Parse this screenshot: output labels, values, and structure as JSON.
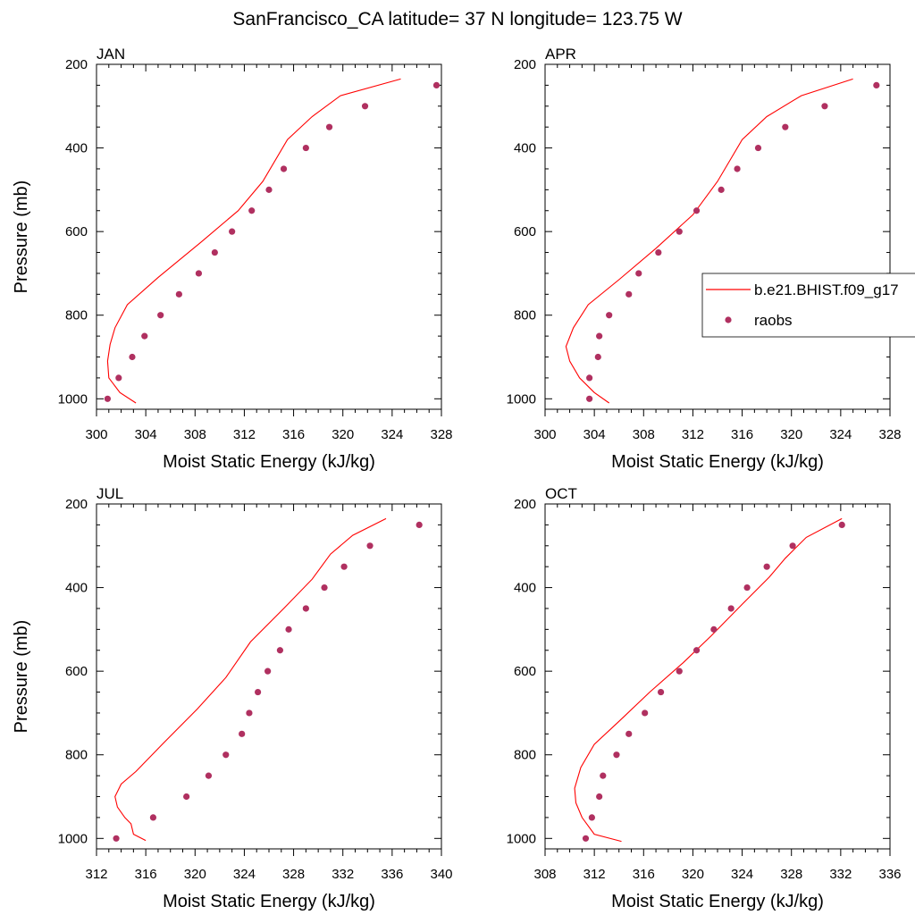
{
  "page": {
    "title": "SanFrancisco_CA  latitude= 37 N longitude= 123.75 W"
  },
  "legend": {
    "model_label": "b.e21.BHIST.f09_g17",
    "obs_label": "raobs"
  },
  "colors": {
    "model_line": "#ff0000",
    "obs_marker": "#b03060",
    "axis": "#000000"
  },
  "chart_data": [
    {
      "type": "line",
      "title": "JAN",
      "xlabel": "Moist Static Energy (kJ/kg)",
      "ylabel": "Pressure (mb)",
      "xlim": [
        300,
        328
      ],
      "xticks": [
        300,
        304,
        308,
        312,
        316,
        320,
        324,
        328
      ],
      "ylim": [
        1025,
        200
      ],
      "yticks": [
        200,
        400,
        600,
        800,
        1000
      ],
      "series": [
        {
          "name": "b.e21.BHIST.f09_g17",
          "kind": "line",
          "x": [
            303.2,
            301.9,
            301.0,
            300.9,
            301.1,
            301.5,
            302.5,
            305.0,
            308.5,
            311.5,
            313.5,
            315.5,
            317.5,
            319.8,
            324.7
          ],
          "y": [
            1010,
            985,
            950,
            910,
            870,
            830,
            775,
            710,
            625,
            550,
            480,
            380,
            325,
            275,
            235
          ]
        },
        {
          "name": "raobs",
          "kind": "scatter",
          "x": [
            300.9,
            301.8,
            302.9,
            303.9,
            305.2,
            306.7,
            308.3,
            309.6,
            311.0,
            312.6,
            314.0,
            315.2,
            317.0,
            318.9,
            321.8,
            327.6
          ],
          "y": [
            1000,
            950,
            900,
            850,
            800,
            750,
            700,
            650,
            600,
            550,
            500,
            450,
            400,
            350,
            300,
            250
          ]
        }
      ]
    },
    {
      "type": "line",
      "title": "APR",
      "xlabel": "Moist Static Energy (kJ/kg)",
      "ylabel": "",
      "xlim": [
        300,
        328
      ],
      "xticks": [
        300,
        304,
        308,
        312,
        316,
        320,
        324,
        328
      ],
      "ylim": [
        1025,
        200
      ],
      "yticks": [
        200,
        400,
        600,
        800,
        1000
      ],
      "series": [
        {
          "name": "b.e21.BHIST.f09_g17",
          "kind": "line",
          "x": [
            305.2,
            304.0,
            302.8,
            302.0,
            301.7,
            302.3,
            303.5,
            306.0,
            309.0,
            312.0,
            314.0,
            316.0,
            318.0,
            320.8,
            325.0
          ],
          "y": [
            1010,
            985,
            950,
            910,
            875,
            830,
            775,
            715,
            640,
            560,
            480,
            380,
            325,
            275,
            235
          ]
        },
        {
          "name": "raobs",
          "kind": "scatter",
          "x": [
            303.6,
            303.6,
            304.3,
            304.4,
            305.2,
            306.8,
            307.6,
            309.2,
            310.9,
            312.3,
            314.3,
            315.6,
            317.3,
            319.5,
            322.7,
            326.9
          ],
          "y": [
            1000,
            950,
            900,
            850,
            800,
            750,
            700,
            650,
            600,
            550,
            500,
            450,
            400,
            350,
            300,
            250
          ]
        }
      ]
    },
    {
      "type": "line",
      "title": "JUL",
      "xlabel": "Moist Static Energy (kJ/kg)",
      "ylabel": "Pressure (mb)",
      "xlim": [
        312,
        340
      ],
      "xticks": [
        312,
        316,
        320,
        324,
        328,
        332,
        336,
        340
      ],
      "ylim": [
        1025,
        200
      ],
      "yticks": [
        200,
        400,
        600,
        800,
        1000
      ],
      "series": [
        {
          "name": "b.e21.BHIST.f09_g17",
          "kind": "line",
          "x": [
            316.0,
            315.0,
            314.8,
            314.3,
            313.7,
            313.5,
            314.0,
            315.2,
            317.5,
            320.2,
            322.5,
            324.5,
            327.2,
            329.5,
            331.0,
            332.8,
            335.5
          ],
          "y": [
            1005,
            990,
            965,
            950,
            925,
            900,
            870,
            840,
            770,
            690,
            615,
            530,
            450,
            380,
            320,
            275,
            235
          ]
        },
        {
          "name": "raobs",
          "kind": "scatter",
          "x": [
            313.6,
            316.6,
            319.3,
            321.1,
            322.5,
            323.8,
            324.4,
            325.1,
            325.9,
            326.9,
            327.6,
            329.0,
            330.5,
            332.1,
            334.2,
            338.2
          ],
          "y": [
            1000,
            950,
            900,
            850,
            800,
            750,
            700,
            650,
            600,
            550,
            500,
            450,
            400,
            350,
            300,
            250
          ]
        }
      ]
    },
    {
      "type": "line",
      "title": "OCT",
      "xlabel": "Moist Static Energy (kJ/kg)",
      "ylabel": "",
      "xlim": [
        308,
        336
      ],
      "xticks": [
        308,
        312,
        316,
        320,
        324,
        328,
        332,
        336
      ],
      "ylim": [
        1025,
        200
      ],
      "yticks": [
        200,
        400,
        600,
        800,
        1000
      ],
      "series": [
        {
          "name": "b.e21.BHIST.f09_g17",
          "kind": "line",
          "x": [
            314.2,
            312.0,
            311.0,
            310.5,
            310.4,
            310.9,
            312.0,
            314.0,
            316.5,
            319.2,
            321.5,
            324.0,
            326.2,
            327.5,
            329.2,
            332.1
          ],
          "y": [
            1007,
            990,
            950,
            915,
            880,
            830,
            775,
            720,
            650,
            580,
            515,
            440,
            375,
            330,
            280,
            235
          ]
        },
        {
          "name": "raobs",
          "kind": "scatter",
          "x": [
            311.3,
            311.8,
            312.4,
            312.7,
            313.8,
            314.8,
            316.1,
            317.4,
            318.9,
            320.3,
            321.7,
            323.1,
            324.4,
            326.0,
            328.1,
            332.1
          ],
          "y": [
            1000,
            950,
            900,
            850,
            800,
            750,
            700,
            650,
            600,
            550,
            500,
            450,
            400,
            350,
            300,
            250
          ]
        }
      ]
    }
  ]
}
